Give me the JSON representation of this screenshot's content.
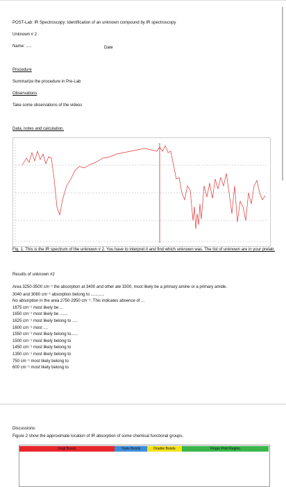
{
  "header": {
    "title": "POST-Lab: IR Spectroscopy: Identification of an unknown compound by IR spectroscopy",
    "unknown": "Unknown # 2",
    "name": "Name: .....",
    "date": "Date"
  },
  "procedure": {
    "heading": "Procedure",
    "text": "Summarize the procedure in Pre-Lab"
  },
  "observations": {
    "heading": "Observations",
    "text": "Take some observations of the videos"
  },
  "data": {
    "heading": "Data, notes and calculation.",
    "caption": "Fig. 1. This is the IR spectrum of the unknown # 2. You have to interpret it and find which unknown was. The list of unknown are in your prelab."
  },
  "results": {
    "heading": "Results of unknown #2",
    "lines": [
      "Area 3250-3500 cm⁻¹ the absorption at 3400 and other ate 3300, most likely be a primary amine or a primary amide.",
      "3040 and 3080 cm⁻¹ absorption belong to ............",
      "No absorption in the area 2750-2950 cm⁻¹. This indicates absence of ...",
      "1675 cm⁻¹ most likely be ...",
      "1650 cm⁻¹ most likely be .......",
      "1625 cm⁻¹ most likely belong to .....",
      "1600 cm⁻¹ most ....",
      "1550 cm⁻¹ most likely belong to......",
      "1500 cm⁻¹ most likely belong to",
      "1450 cm⁻¹ most likely belong to",
      "1350 cm⁻¹ most likely belong to",
      "750 cm⁻¹ most likely belong to",
      "600 cm⁻¹ most likely belong to"
    ]
  },
  "discussions": {
    "heading": "Discussions:",
    "text": "Figure 2 show the approximate location of IR absorption of some chemical functional groups.",
    "regions": [
      "Singl Bonds",
      "Triple Bonds",
      "Double Bonds",
      "Finger Print Region"
    ]
  }
}
